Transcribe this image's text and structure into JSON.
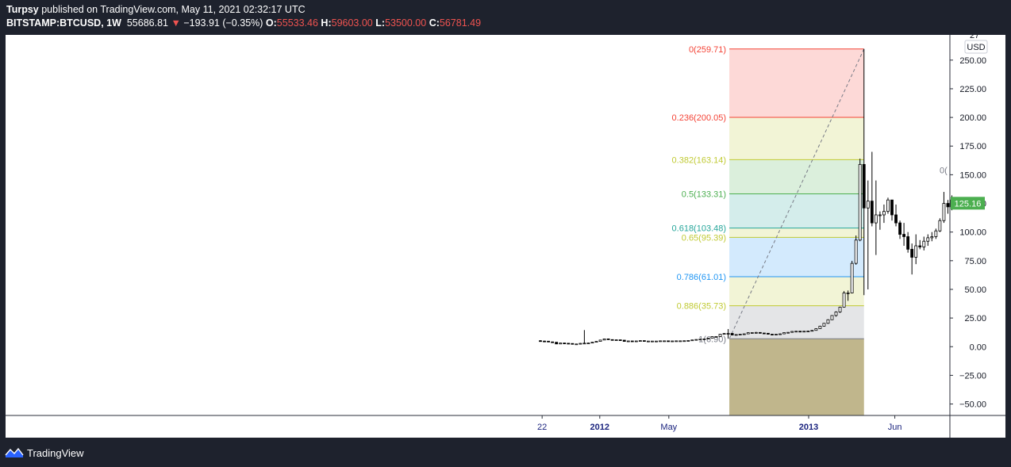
{
  "header": {
    "author": "Turpsy",
    "published": "published on TradingView.com, May 11, 2021 02:32:17 UTC",
    "symbol": "BITSTAMP:BTCUSD, 1W",
    "price": "55686.81",
    "change_arrow": "▼",
    "change": "−193.91 (−0.35%)",
    "o_label": "O:",
    "o_value": "55533.46",
    "h_label": "H:",
    "h_value": "59603.00",
    "l_label": "L:",
    "l_value": "53500.00",
    "c_label": "C:",
    "c_value": "56781.49"
  },
  "footer": {
    "brand": "TradingView",
    "logo_icon": "tradingview-logo-icon"
  },
  "colors": {
    "background": "#1e222d",
    "last_price_badge": "#4caf50",
    "fib_0": "#f44336",
    "fib_0236": "#f44336",
    "fib_0382": "#c0ca33",
    "fib_05": "#4caf50",
    "fib_0618": "#26a69a",
    "fib_065": "#c0ca33",
    "fib_0786": "#2196f3",
    "fib_0886": "#c0ca33",
    "fib_1": "#787b86"
  },
  "chart_data": {
    "type": "candlestick",
    "title": "",
    "y_axis": {
      "unit_badge": "USD",
      "range": [
        -60,
        272
      ],
      "ticks": [
        "−50.00",
        "−25.00",
        "0.00",
        "25.00",
        "50.00",
        "75.00",
        "100.00",
        "125.00",
        "150.00",
        "175.00",
        "200.00",
        "225.00",
        "250.00"
      ],
      "tick_values": [
        -50,
        -25,
        0,
        25,
        50,
        75,
        100,
        125,
        150,
        175,
        200,
        225,
        250
      ],
      "top_partial_label": "27"
    },
    "x_axis": {
      "ticks": [
        {
          "label": "22",
          "bold": false,
          "date": "2011-09-22"
        },
        {
          "label": "2012",
          "bold": true,
          "date": "2012-01-01"
        },
        {
          "label": "May",
          "bold": false,
          "date": "2012-05-01"
        },
        {
          "label": "2013",
          "bold": true,
          "date": "2013-01-01"
        },
        {
          "label": "Jun",
          "bold": false,
          "date": "2013-06-01"
        }
      ]
    },
    "last_price": {
      "value": 125.16,
      "label": "125.16"
    },
    "fib_retracement": {
      "start": {
        "date": "2012-08-15",
        "price": 6.9
      },
      "end": {
        "date": "2013-04-08",
        "price": 259.71
      },
      "levels": [
        {
          "label": "0(259.71)",
          "value": 259.71,
          "color_key": "fib_0"
        },
        {
          "label": "0.236(200.05)",
          "value": 200.05,
          "color_key": "fib_0236"
        },
        {
          "label": "0.382(163.14)",
          "value": 163.14,
          "color_key": "fib_0382"
        },
        {
          "label": "0.5(133.31)",
          "value": 133.31,
          "color_key": "fib_05"
        },
        {
          "label": "0.618(103.48)",
          "value": 103.48,
          "color_key": "fib_0618"
        },
        {
          "label": "0.65(95.39)",
          "value": 95.39,
          "color_key": "fib_065"
        },
        {
          "label": "0.786(61.01)",
          "value": 61.01,
          "color_key": "fib_0786"
        },
        {
          "label": "0.886(35.73)",
          "value": 35.73,
          "color_key": "fib_0886"
        },
        {
          "label": "1(6.90)",
          "value": 6.9,
          "color_key": "fib_1"
        }
      ]
    },
    "secondary_fib_label": "0(",
    "candles": [
      {
        "date": "2011-09-19",
        "o": 5.2,
        "h": 5.7,
        "l": 4.7,
        "c": 4.9
      },
      {
        "date": "2011-09-26",
        "o": 4.9,
        "h": 5.2,
        "l": 4.6,
        "c": 4.8
      },
      {
        "date": "2011-10-03",
        "o": 4.8,
        "h": 5.0,
        "l": 4.1,
        "c": 4.2
      },
      {
        "date": "2011-10-10",
        "o": 4.2,
        "h": 4.3,
        "l": 3.6,
        "c": 3.9
      },
      {
        "date": "2011-10-17",
        "o": 3.9,
        "h": 3.9,
        "l": 2.3,
        "c": 2.4
      },
      {
        "date": "2011-10-24",
        "o": 2.4,
        "h": 3.4,
        "l": 2.2,
        "c": 3.2
      },
      {
        "date": "2011-10-31",
        "o": 3.2,
        "h": 3.4,
        "l": 2.9,
        "c": 3.0
      },
      {
        "date": "2011-11-07",
        "o": 3.0,
        "h": 3.1,
        "l": 2.6,
        "c": 2.8
      },
      {
        "date": "2011-11-14",
        "o": 2.8,
        "h": 2.9,
        "l": 2.0,
        "c": 2.2
      },
      {
        "date": "2011-11-21",
        "o": 2.2,
        "h": 2.6,
        "l": 2.0,
        "c": 2.4
      },
      {
        "date": "2011-11-28",
        "o": 2.4,
        "h": 3.2,
        "l": 2.3,
        "c": 2.9
      },
      {
        "date": "2011-12-05",
        "o": 2.9,
        "h": 14.5,
        "l": 2.8,
        "c": 3.1
      },
      {
        "date": "2011-12-12",
        "o": 3.1,
        "h": 3.4,
        "l": 3.0,
        "c": 3.2
      },
      {
        "date": "2011-12-19",
        "o": 3.2,
        "h": 4.0,
        "l": 3.1,
        "c": 3.9
      },
      {
        "date": "2011-12-26",
        "o": 3.9,
        "h": 4.7,
        "l": 3.8,
        "c": 4.6
      },
      {
        "date": "2012-01-02",
        "o": 4.6,
        "h": 5.9,
        "l": 4.5,
        "c": 5.8
      },
      {
        "date": "2012-01-09",
        "o": 5.8,
        "h": 7.0,
        "l": 5.8,
        "c": 6.8
      },
      {
        "date": "2012-01-16",
        "o": 6.8,
        "h": 7.0,
        "l": 6.0,
        "c": 6.2
      },
      {
        "date": "2012-01-23",
        "o": 6.2,
        "h": 6.3,
        "l": 5.4,
        "c": 5.6
      },
      {
        "date": "2012-01-30",
        "o": 5.6,
        "h": 6.2,
        "l": 5.5,
        "c": 6.0
      },
      {
        "date": "2012-02-06",
        "o": 6.0,
        "h": 6.1,
        "l": 5.5,
        "c": 5.7
      },
      {
        "date": "2012-02-13",
        "o": 5.7,
        "h": 5.8,
        "l": 4.4,
        "c": 4.6
      },
      {
        "date": "2012-02-20",
        "o": 4.6,
        "h": 5.1,
        "l": 4.4,
        "c": 5.0
      },
      {
        "date": "2012-02-27",
        "o": 5.0,
        "h": 5.1,
        "l": 4.8,
        "c": 4.9
      },
      {
        "date": "2012-03-05",
        "o": 4.9,
        "h": 5.1,
        "l": 4.8,
        "c": 5.0
      },
      {
        "date": "2012-03-12",
        "o": 5.0,
        "h": 5.4,
        "l": 4.9,
        "c": 5.3
      },
      {
        "date": "2012-03-19",
        "o": 5.3,
        "h": 5.3,
        "l": 4.7,
        "c": 4.8
      },
      {
        "date": "2012-03-26",
        "o": 4.8,
        "h": 4.9,
        "l": 4.7,
        "c": 4.9
      },
      {
        "date": "2012-04-02",
        "o": 4.9,
        "h": 5.0,
        "l": 4.8,
        "c": 4.9
      },
      {
        "date": "2012-04-09",
        "o": 4.9,
        "h": 5.0,
        "l": 4.8,
        "c": 4.9
      },
      {
        "date": "2012-04-16",
        "o": 4.9,
        "h": 5.2,
        "l": 4.9,
        "c": 5.1
      },
      {
        "date": "2012-04-23",
        "o": 5.1,
        "h": 5.2,
        "l": 5.0,
        "c": 5.1
      },
      {
        "date": "2012-04-30",
        "o": 5.1,
        "h": 5.1,
        "l": 4.9,
        "c": 5.0
      },
      {
        "date": "2012-05-07",
        "o": 5.0,
        "h": 5.1,
        "l": 4.9,
        "c": 5.0
      },
      {
        "date": "2012-05-14",
        "o": 5.0,
        "h": 5.1,
        "l": 4.9,
        "c": 5.1
      },
      {
        "date": "2012-05-21",
        "o": 5.1,
        "h": 5.2,
        "l": 5.0,
        "c": 5.1
      },
      {
        "date": "2012-05-28",
        "o": 5.1,
        "h": 5.3,
        "l": 5.1,
        "c": 5.2
      },
      {
        "date": "2012-06-04",
        "o": 5.2,
        "h": 5.5,
        "l": 5.2,
        "c": 5.4
      },
      {
        "date": "2012-06-11",
        "o": 5.4,
        "h": 6.0,
        "l": 5.4,
        "c": 5.9
      },
      {
        "date": "2012-06-18",
        "o": 5.9,
        "h": 6.4,
        "l": 5.9,
        "c": 6.3
      },
      {
        "date": "2012-06-25",
        "o": 6.3,
        "h": 6.7,
        "l": 6.3,
        "c": 6.6
      },
      {
        "date": "2012-07-02",
        "o": 6.6,
        "h": 7.0,
        "l": 6.5,
        "c": 6.8
      },
      {
        "date": "2012-07-09",
        "o": 6.8,
        "h": 7.6,
        "l": 6.8,
        "c": 7.5
      },
      {
        "date": "2012-07-16",
        "o": 7.5,
        "h": 9.0,
        "l": 7.4,
        "c": 8.8
      },
      {
        "date": "2012-07-23",
        "o": 8.8,
        "h": 9.0,
        "l": 8.4,
        "c": 8.9
      },
      {
        "date": "2012-07-30",
        "o": 8.9,
        "h": 11.0,
        "l": 8.8,
        "c": 10.9
      },
      {
        "date": "2012-08-06",
        "o": 10.9,
        "h": 11.8,
        "l": 10.7,
        "c": 11.5
      },
      {
        "date": "2012-08-13",
        "o": 11.5,
        "h": 15.4,
        "l": 7.0,
        "c": 11.6
      },
      {
        "date": "2012-08-20",
        "o": 11.6,
        "h": 11.7,
        "l": 9.9,
        "c": 10.2
      },
      {
        "date": "2012-08-27",
        "o": 10.2,
        "h": 10.8,
        "l": 10.1,
        "c": 10.6
      },
      {
        "date": "2012-09-03",
        "o": 10.6,
        "h": 11.0,
        "l": 10.5,
        "c": 10.9
      },
      {
        "date": "2012-09-10",
        "o": 10.9,
        "h": 11.3,
        "l": 10.9,
        "c": 11.2
      },
      {
        "date": "2012-09-17",
        "o": 11.2,
        "h": 12.4,
        "l": 11.2,
        "c": 12.2
      },
      {
        "date": "2012-09-24",
        "o": 12.2,
        "h": 12.4,
        "l": 12.0,
        "c": 12.3
      },
      {
        "date": "2012-10-01",
        "o": 12.3,
        "h": 12.9,
        "l": 12.2,
        "c": 12.4
      },
      {
        "date": "2012-10-08",
        "o": 12.4,
        "h": 12.5,
        "l": 11.7,
        "c": 11.9
      },
      {
        "date": "2012-10-15",
        "o": 11.9,
        "h": 12.0,
        "l": 11.5,
        "c": 11.7
      },
      {
        "date": "2012-10-22",
        "o": 11.7,
        "h": 11.8,
        "l": 10.7,
        "c": 10.9
      },
      {
        "date": "2012-10-29",
        "o": 10.9,
        "h": 11.0,
        "l": 10.6,
        "c": 10.7
      },
      {
        "date": "2012-11-05",
        "o": 10.7,
        "h": 11.0,
        "l": 10.6,
        "c": 10.9
      },
      {
        "date": "2012-11-12",
        "o": 10.9,
        "h": 11.4,
        "l": 10.8,
        "c": 11.2
      },
      {
        "date": "2012-11-19",
        "o": 11.2,
        "h": 12.4,
        "l": 11.1,
        "c": 12.3
      },
      {
        "date": "2012-11-26",
        "o": 12.3,
        "h": 12.6,
        "l": 12.2,
        "c": 12.5
      },
      {
        "date": "2012-12-03",
        "o": 12.5,
        "h": 13.5,
        "l": 12.4,
        "c": 13.3
      },
      {
        "date": "2012-12-10",
        "o": 13.3,
        "h": 13.6,
        "l": 13.1,
        "c": 13.5
      },
      {
        "date": "2012-12-17",
        "o": 13.5,
        "h": 13.6,
        "l": 13.3,
        "c": 13.4
      },
      {
        "date": "2012-12-24",
        "o": 13.4,
        "h": 13.6,
        "l": 13.3,
        "c": 13.5
      },
      {
        "date": "2012-12-31",
        "o": 13.5,
        "h": 13.8,
        "l": 13.4,
        "c": 13.6
      },
      {
        "date": "2013-01-07",
        "o": 13.6,
        "h": 14.4,
        "l": 13.5,
        "c": 14.2
      },
      {
        "date": "2013-01-14",
        "o": 14.2,
        "h": 15.9,
        "l": 14.1,
        "c": 15.7
      },
      {
        "date": "2013-01-21",
        "o": 15.7,
        "h": 18.3,
        "l": 15.6,
        "c": 17.9
      },
      {
        "date": "2013-01-28",
        "o": 17.9,
        "h": 20.5,
        "l": 17.6,
        "c": 20.4
      },
      {
        "date": "2013-02-04",
        "o": 20.4,
        "h": 23.9,
        "l": 20.0,
        "c": 23.5
      },
      {
        "date": "2013-02-11",
        "o": 23.5,
        "h": 27.5,
        "l": 23.4,
        "c": 27.2
      },
      {
        "date": "2013-02-18",
        "o": 27.2,
        "h": 30.9,
        "l": 26.2,
        "c": 30.3
      },
      {
        "date": "2013-02-25",
        "o": 30.3,
        "h": 34.9,
        "l": 29.5,
        "c": 34.5
      },
      {
        "date": "2013-03-04",
        "o": 34.5,
        "h": 48.5,
        "l": 34.3,
        "c": 46.9
      },
      {
        "date": "2013-03-11",
        "o": 46.9,
        "h": 49.0,
        "l": 40.0,
        "c": 46.9
      },
      {
        "date": "2013-03-18",
        "o": 46.9,
        "h": 74.9,
        "l": 46.5,
        "c": 72.7
      },
      {
        "date": "2013-03-25",
        "o": 72.7,
        "h": 97.0,
        "l": 71.5,
        "c": 93.0
      },
      {
        "date": "2013-04-01",
        "o": 93.0,
        "h": 164.0,
        "l": 92.0,
        "c": 159.0
      },
      {
        "date": "2013-04-08",
        "o": 159.0,
        "h": 259.71,
        "l": 45.0,
        "c": 121.0
      },
      {
        "date": "2013-04-15",
        "o": 121.0,
        "h": 145.0,
        "l": 50.0,
        "c": 127.0
      },
      {
        "date": "2013-04-22",
        "o": 127.0,
        "h": 170.0,
        "l": 105.0,
        "c": 108.0
      },
      {
        "date": "2013-04-29",
        "o": 108.0,
        "h": 145.0,
        "l": 80.0,
        "c": 115.0
      },
      {
        "date": "2013-05-06",
        "o": 115.0,
        "h": 118.0,
        "l": 102.0,
        "c": 115.0
      },
      {
        "date": "2013-05-13",
        "o": 115.0,
        "h": 124.0,
        "l": 108.0,
        "c": 118.0
      },
      {
        "date": "2013-05-20",
        "o": 118.0,
        "h": 130.0,
        "l": 116.0,
        "c": 128.0
      },
      {
        "date": "2013-05-27",
        "o": 128.0,
        "h": 128.0,
        "l": 110.0,
        "c": 115.0
      },
      {
        "date": "2013-06-03",
        "o": 115.0,
        "h": 124.0,
        "l": 105.0,
        "c": 108.0
      },
      {
        "date": "2013-06-10",
        "o": 108.0,
        "h": 110.0,
        "l": 94.0,
        "c": 98.0
      },
      {
        "date": "2013-06-17",
        "o": 98.0,
        "h": 108.0,
        "l": 88.0,
        "c": 96.0
      },
      {
        "date": "2013-06-24",
        "o": 96.0,
        "h": 100.0,
        "l": 82.0,
        "c": 85.0
      },
      {
        "date": "2013-07-01",
        "o": 85.0,
        "h": 90.0,
        "l": 63.0,
        "c": 78.0
      },
      {
        "date": "2013-07-08",
        "o": 78.0,
        "h": 98.0,
        "l": 72.0,
        "c": 88.0
      },
      {
        "date": "2013-07-15",
        "o": 88.0,
        "h": 93.0,
        "l": 85.0,
        "c": 87.0
      },
      {
        "date": "2013-07-22",
        "o": 87.0,
        "h": 96.0,
        "l": 84.0,
        "c": 92.0
      },
      {
        "date": "2013-07-29",
        "o": 92.0,
        "h": 98.0,
        "l": 88.0,
        "c": 95.0
      },
      {
        "date": "2013-08-05",
        "o": 95.0,
        "h": 100.0,
        "l": 92.0,
        "c": 96.0
      },
      {
        "date": "2013-08-12",
        "o": 96.0,
        "h": 103.0,
        "l": 94.0,
        "c": 101.0
      },
      {
        "date": "2013-08-19",
        "o": 101.0,
        "h": 112.0,
        "l": 100.0,
        "c": 110.0
      },
      {
        "date": "2013-08-26",
        "o": 110.0,
        "h": 135.0,
        "l": 108.0,
        "c": 125.0
      },
      {
        "date": "2013-09-02",
        "o": 125.0,
        "h": 128.0,
        "l": 116.0,
        "c": 122.0
      },
      {
        "date": "2013-09-09",
        "o": 122.0,
        "h": 132.0,
        "l": 119.0,
        "c": 128.0
      },
      {
        "date": "2013-09-16",
        "o": 128.0,
        "h": 130.0,
        "l": 120.0,
        "c": 125.16
      }
    ]
  }
}
